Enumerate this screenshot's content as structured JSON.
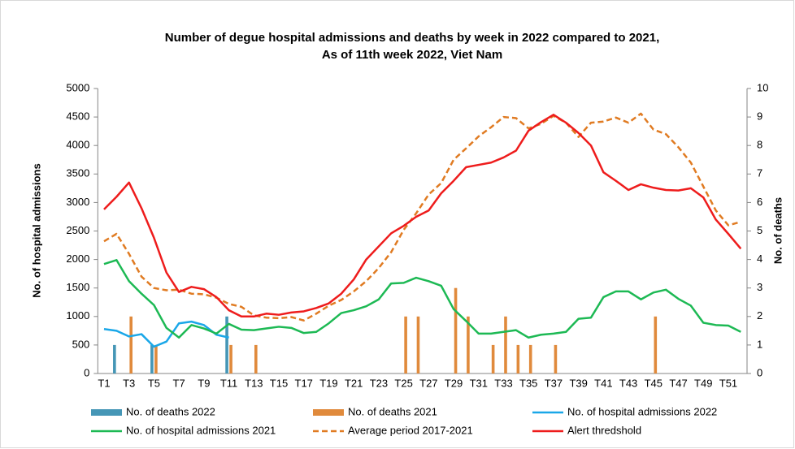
{
  "chart_data": {
    "type": "combo",
    "title": [
      "Number of degue hospital admissions and deaths by week in 2022 compared to 2021,",
      "As of 11th week 2022, Viet Nam"
    ],
    "y_label": "No. of hospital admissions",
    "y2_label": "No. of deaths",
    "categories": [
      "T1",
      null,
      "T3",
      null,
      "T5",
      null,
      "T7",
      null,
      "T9",
      null,
      "T11",
      null,
      "T13",
      null,
      "T15",
      null,
      "T17",
      null,
      "T19",
      null,
      "T21",
      null,
      "T23",
      null,
      "T25",
      null,
      "T27",
      null,
      "T29",
      null,
      "T31",
      null,
      "T33",
      null,
      "T35",
      null,
      "T37",
      null,
      "T39",
      null,
      "T41",
      null,
      "T43",
      null,
      "T45",
      null,
      "T47",
      null,
      "T49",
      null,
      "T51",
      null
    ],
    "ylim": [
      0,
      5000
    ],
    "yticks": [
      0,
      500,
      1000,
      1500,
      2000,
      2500,
      3000,
      3500,
      4000,
      4500,
      5000
    ],
    "y2lim": [
      0,
      10
    ],
    "y2ticks": [
      0,
      1,
      2,
      3,
      4,
      5,
      6,
      7,
      8,
      9,
      10
    ],
    "grid": false,
    "legend": "bottom",
    "series": [
      {
        "name": "No. of deaths 2022",
        "type": "bar",
        "axis": "y2",
        "color": "#4596b6",
        "values": [
          0,
          1,
          0,
          0,
          1,
          0,
          0,
          0,
          0,
          0,
          2,
          null,
          null,
          null,
          null,
          null,
          null,
          null,
          null,
          null,
          null,
          null,
          null,
          null,
          null,
          null,
          null,
          null,
          null,
          null,
          null,
          null,
          null,
          null,
          null,
          null,
          null,
          null,
          null,
          null,
          null,
          null,
          null,
          null,
          null,
          null,
          null,
          null,
          null,
          null,
          null,
          null
        ]
      },
      {
        "name": "No. of deaths 2021",
        "type": "bar",
        "axis": "y2",
        "color": "#e08a3c",
        "values": [
          0,
          0,
          2,
          0,
          1,
          0,
          0,
          0,
          0,
          0,
          1,
          0,
          1,
          0,
          0,
          0,
          0,
          0,
          0,
          0,
          0,
          0,
          0,
          0,
          2,
          2,
          0,
          0,
          3,
          2,
          0,
          1,
          2,
          1,
          1,
          0,
          1,
          0,
          0,
          0,
          0,
          0,
          0,
          0,
          2,
          0,
          0,
          0,
          0,
          0,
          0,
          0
        ]
      },
      {
        "name": "No. of hospital admissions 2022",
        "type": "line",
        "color": "#1aa7e8",
        "values": [
          780,
          750,
          650,
          690,
          470,
          560,
          880,
          910,
          850,
          680,
          630,
          null,
          null,
          null,
          null,
          null,
          null,
          null,
          null,
          null,
          null,
          null,
          null,
          null,
          null,
          null,
          null,
          null,
          null,
          null,
          null,
          null,
          null,
          null,
          null,
          null,
          null,
          null,
          null,
          null,
          null,
          null,
          null,
          null,
          null,
          null,
          null,
          null,
          null,
          null,
          null,
          null
        ]
      },
      {
        "name": "No. of hospital admissions 2021",
        "type": "line",
        "color": "#1db954",
        "values": [
          1920,
          1990,
          1620,
          1400,
          1200,
          800,
          630,
          850,
          790,
          700,
          870,
          770,
          760,
          790,
          820,
          800,
          710,
          730,
          880,
          1060,
          1110,
          1180,
          1300,
          1580,
          1590,
          1680,
          1620,
          1540,
          1130,
          920,
          700,
          700,
          730,
          760,
          630,
          680,
          700,
          730,
          960,
          980,
          1340,
          1440,
          1440,
          1300,
          1420,
          1470,
          1310,
          1190,
          890,
          850,
          840,
          730
        ]
      },
      {
        "name": "Average period 2017-2021",
        "type": "line",
        "dashed": true,
        "color": "#e07b22",
        "values": [
          2320,
          2450,
          2100,
          1700,
          1500,
          1460,
          1470,
          1400,
          1390,
          1330,
          1220,
          1170,
          1020,
          980,
          970,
          990,
          930,
          1050,
          1190,
          1290,
          1440,
          1620,
          1850,
          2130,
          2520,
          2810,
          3140,
          3340,
          3750,
          3950,
          4160,
          4320,
          4500,
          4480,
          4300,
          4380,
          4520,
          4400,
          4150,
          4400,
          4420,
          4490,
          4400,
          4560,
          4280,
          4200,
          3970,
          3700,
          3280,
          2860,
          2600,
          2660
        ]
      },
      {
        "name": "Alert thredshold",
        "type": "line",
        "color": "#ee1c1c",
        "values": [
          2880,
          3100,
          3350,
          2900,
          2380,
          1770,
          1430,
          1520,
          1480,
          1340,
          1110,
          1000,
          1000,
          1050,
          1030,
          1070,
          1090,
          1150,
          1230,
          1400,
          1650,
          2000,
          2230,
          2460,
          2590,
          2750,
          2860,
          3160,
          3380,
          3620,
          3660,
          3700,
          3790,
          3910,
          4260,
          4410,
          4540,
          4400,
          4220,
          4000,
          3530,
          3380,
          3220,
          3320,
          3260,
          3220,
          3210,
          3250,
          3090,
          2700,
          2450,
          2190
        ]
      }
    ]
  }
}
